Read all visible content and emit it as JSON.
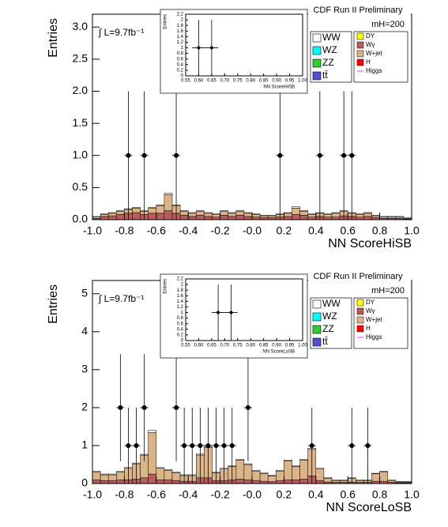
{
  "chart_data": [
    {
      "type": "histogram",
      "xlabel": "NN ScoreHiSB",
      "ylabel": "Entries",
      "experiment": "CDF Run II Preliminary",
      "mass_label": "mH=200",
      "luminosity": "∫ L=9.7fb⁻¹",
      "xlim": [
        -1,
        1
      ],
      "ylim": [
        0,
        3.2
      ],
      "xticks": [
        {
          "value": -1,
          "label": "-1.0"
        },
        {
          "value": -0.8,
          "label": "-0.8"
        },
        {
          "value": -0.6,
          "label": "-0.6"
        },
        {
          "value": -0.4,
          "label": "-0.4"
        },
        {
          "value": -0.2,
          "label": "-0.2"
        },
        {
          "value": 0,
          "label": "-0.0"
        },
        {
          "value": 0.2,
          "label": "0.2"
        },
        {
          "value": 0.4,
          "label": "0.4"
        },
        {
          "value": 0.6,
          "label": "0.6"
        },
        {
          "value": 0.8,
          "label": "0.8"
        },
        {
          "value": 1,
          "label": "1.0"
        }
      ],
      "yticks": [
        {
          "value": 0,
          "label": "0.0"
        },
        {
          "value": 0.5,
          "label": "0.5"
        },
        {
          "value": 1,
          "label": "1.0"
        },
        {
          "value": 1.5,
          "label": "1.5"
        },
        {
          "value": 2,
          "label": "2.0"
        },
        {
          "value": 2.5,
          "label": "2.5"
        },
        {
          "value": 3,
          "label": "3.0"
        }
      ],
      "legend": [
        {
          "name": "WW",
          "color": "#ffffff"
        },
        {
          "name": "WZ",
          "color": "#00ffff"
        },
        {
          "name": "ZZ",
          "color": "#33cc33"
        },
        {
          "name": "tt̄",
          "color": "#5050d0"
        },
        {
          "name": "DY",
          "color": "#ffff00"
        },
        {
          "name": "Wγ",
          "color": "#b85c5c"
        },
        {
          "name": "W+jet",
          "color": "#dcb48a"
        },
        {
          "name": "H",
          "color": "#ff0000"
        },
        {
          "name": "Higgs",
          "color": "#ff33ff"
        }
      ],
      "bins": [
        -1,
        -0.95,
        -0.9,
        -0.85,
        -0.8,
        -0.75,
        -0.7,
        -0.65,
        -0.6,
        -0.55,
        -0.5,
        -0.45,
        -0.4,
        -0.35,
        -0.3,
        -0.25,
        -0.2,
        -0.15,
        -0.1,
        -0.05,
        0,
        0.05,
        0.1,
        0.15,
        0.2,
        0.25,
        0.3,
        0.35,
        0.4,
        0.45,
        0.5,
        0.55,
        0.6,
        0.65,
        0.7,
        0.75,
        0.8,
        0.85,
        0.9,
        0.95,
        1
      ],
      "series": [
        {
          "color": "#b85c5c",
          "values": [
            0.02,
            0.05,
            0.06,
            0.08,
            0.1,
            0.11,
            0.08,
            0.1,
            0.1,
            0.14,
            0.1,
            0.07,
            0.05,
            0.07,
            0.05,
            0.04,
            0.07,
            0.05,
            0.07,
            0.05,
            0.04,
            0.03,
            0.03,
            0.04,
            0.05,
            0.08,
            0.07,
            0.04,
            0.05,
            0.04,
            0.04,
            0.06,
            0.05,
            0.04,
            0.05,
            0.03,
            0.02,
            0.02,
            0.02,
            0.01
          ]
        },
        {
          "color": "#dcb48a",
          "values": [
            0.02,
            0.03,
            0.04,
            0.05,
            0.06,
            0.07,
            0.05,
            0.08,
            0.12,
            0.25,
            0.12,
            0.06,
            0.05,
            0.06,
            0.05,
            0.04,
            0.06,
            0.05,
            0.06,
            0.05,
            0.04,
            0.03,
            0.03,
            0.04,
            0.05,
            0.1,
            0.06,
            0.04,
            0.05,
            0.04,
            0.06,
            0.07,
            0.05,
            0.04,
            0.05,
            0.03,
            0.02,
            0.02,
            0.02,
            0.01
          ]
        },
        {
          "color": "#ffffff",
          "values": [
            0.01,
            0.01,
            0.01,
            0.01,
            0.01,
            0.01,
            0.01,
            0.01,
            0.01,
            0.02,
            0.01,
            0.01,
            0.01,
            0.01,
            0.01,
            0.01,
            0.01,
            0.01,
            0.01,
            0.01,
            0.01,
            0.01,
            0.01,
            0.01,
            0.01,
            0.02,
            0.01,
            0.01,
            0.01,
            0.01,
            0.01,
            0.01,
            0.01,
            0.01,
            0.01,
            0.01,
            0.01,
            0.01,
            0.01,
            0.01
          ]
        }
      ],
      "data_points": {
        "x": [
          -0.775,
          -0.675,
          -0.475,
          0.175,
          0.425,
          0.575,
          0.625
        ],
        "values": [
          1,
          1,
          1,
          1,
          1,
          1,
          1
        ],
        "errors": [
          1,
          1,
          1,
          1,
          1,
          1,
          1
        ]
      }
    },
    {
      "type": "inset",
      "xlabel": "NN ScoreHiSB",
      "ylabel": "Entries",
      "xlim": [
        0.55,
        1
      ],
      "ylim": [
        0,
        2.2
      ],
      "xticks": [
        {
          "value": 0.55,
          "label": "0.55"
        },
        {
          "value": 0.6,
          "label": "0.60"
        },
        {
          "value": 0.65,
          "label": "0.65"
        },
        {
          "value": 0.7,
          "label": "0.70"
        },
        {
          "value": 0.75,
          "label": "0.75"
        },
        {
          "value": 0.8,
          "label": "0.80"
        },
        {
          "value": 0.85,
          "label": "0.85"
        },
        {
          "value": 0.9,
          "label": "0.90"
        },
        {
          "value": 0.95,
          "label": "0.95"
        },
        {
          "value": 1,
          "label": "1.00"
        }
      ],
      "yticks": [
        0,
        0.2,
        0.4,
        0.6,
        0.8,
        1,
        1.2,
        1.4,
        1.6,
        1.8,
        2,
        2.2
      ],
      "data_points": {
        "x": [
          0.6,
          0.65
        ],
        "values": [
          1,
          1
        ],
        "errors": [
          1,
          1
        ]
      }
    },
    {
      "type": "histogram",
      "xlabel": "NN ScoreLoSB",
      "ylabel": "Entries",
      "experiment": "CDF Run II Preliminary",
      "mass_label": "mH=200",
      "luminosity": "∫ L=9.7fb⁻¹",
      "xlim": [
        -1,
        1
      ],
      "ylim": [
        0,
        5.35
      ],
      "xticks": [
        {
          "value": -1,
          "label": "-1.0"
        },
        {
          "value": -0.8,
          "label": "-0.8"
        },
        {
          "value": -0.6,
          "label": "-0.6"
        },
        {
          "value": -0.4,
          "label": "-0.4"
        },
        {
          "value": -0.2,
          "label": "-0.2"
        },
        {
          "value": 0,
          "label": "-0.0"
        },
        {
          "value": 0.2,
          "label": "0.2"
        },
        {
          "value": 0.4,
          "label": "0.4"
        },
        {
          "value": 0.6,
          "label": "0.6"
        },
        {
          "value": 0.8,
          "label": "0.8"
        },
        {
          "value": 1,
          "label": "1.0"
        }
      ],
      "yticks": [
        0,
        1,
        2,
        3,
        4,
        5
      ],
      "legend": [
        {
          "name": "WW",
          "color": "#ffffff"
        },
        {
          "name": "WZ",
          "color": "#00ffff"
        },
        {
          "name": "ZZ",
          "color": "#33cc33"
        },
        {
          "name": "tt̄",
          "color": "#5050d0"
        },
        {
          "name": "DY",
          "color": "#ffff00"
        },
        {
          "name": "Wγ",
          "color": "#b85c5c"
        },
        {
          "name": "W+jet",
          "color": "#dcb48a"
        },
        {
          "name": "H",
          "color": "#ff0000"
        },
        {
          "name": "Higgs",
          "color": "#ff33ff"
        }
      ],
      "bins": [
        -1,
        -0.95,
        -0.9,
        -0.85,
        -0.8,
        -0.75,
        -0.7,
        -0.65,
        -0.6,
        -0.55,
        -0.5,
        -0.45,
        -0.4,
        -0.35,
        -0.3,
        -0.25,
        -0.2,
        -0.15,
        -0.1,
        -0.05,
        0,
        0.05,
        0.1,
        0.15,
        0.2,
        0.25,
        0.3,
        0.35,
        0.4,
        0.45,
        0.5,
        0.55,
        0.6,
        0.65,
        0.7,
        0.75,
        0.8,
        0.85,
        0.9,
        0.95,
        1
      ],
      "series": [
        {
          "color": "#b85c5c",
          "values": [
            0.1,
            0.08,
            0.08,
            0.1,
            0.1,
            0.12,
            0.15,
            0.25,
            0.1,
            0.1,
            0.08,
            0.06,
            0.06,
            0.15,
            0.15,
            0.08,
            0.08,
            0.1,
            0.12,
            0.1,
            0.08,
            0.06,
            0.05,
            0.08,
            0.1,
            0.1,
            0.12,
            0.2,
            0.08,
            0.04,
            0.03,
            0.03,
            0.04,
            0.03,
            0.03,
            0.06,
            0.06,
            0.03,
            0.02,
            0.02
          ]
        },
        {
          "color": "#dcb48a",
          "values": [
            0.2,
            0.15,
            0.15,
            0.2,
            0.3,
            0.4,
            0.6,
            1.1,
            0.3,
            0.25,
            0.2,
            0.15,
            0.15,
            0.6,
            0.8,
            0.2,
            0.3,
            0.35,
            0.5,
            0.4,
            0.25,
            0.2,
            0.15,
            0.25,
            0.5,
            0.35,
            0.5,
            0.7,
            0.3,
            0.1,
            0.05,
            0.05,
            0.1,
            0.05,
            0.05,
            0.2,
            0.25,
            0.05,
            0.02,
            0.02
          ]
        },
        {
          "color": "#ffffff",
          "values": [
            0.02,
            0.02,
            0.02,
            0.02,
            0.02,
            0.02,
            0.02,
            0.05,
            0.02,
            0.02,
            0.02,
            0.02,
            0.02,
            0.03,
            0.03,
            0.02,
            0.02,
            0.02,
            0.02,
            0.02,
            0.02,
            0.02,
            0.02,
            0.02,
            0.02,
            0.02,
            0.02,
            0.03,
            0.02,
            0.02,
            0.01,
            0.01,
            0.01,
            0.01,
            0.01,
            0.01,
            0.01,
            0.01,
            0.01,
            0.01
          ]
        }
      ],
      "data_points": {
        "x": [
          -0.825,
          -0.775,
          -0.725,
          -0.675,
          -0.475,
          -0.425,
          -0.375,
          -0.325,
          -0.275,
          -0.225,
          -0.175,
          -0.125,
          -0.025,
          0.375,
          0.625,
          0.725
        ],
        "values": [
          2,
          1,
          1,
          2,
          2,
          1,
          1,
          1,
          1,
          1,
          1,
          1,
          2,
          1,
          1,
          1
        ],
        "errors": [
          1.41,
          1,
          1,
          1.41,
          1.41,
          1,
          1,
          1,
          1,
          1,
          1,
          1,
          1.41,
          1,
          1,
          1
        ]
      }
    },
    {
      "type": "inset",
      "xlabel": "NN ScoreLoSB",
      "ylabel": "Entries",
      "xlim": [
        0.55,
        1
      ],
      "ylim": [
        0,
        2.2
      ],
      "xticks": [
        {
          "value": 0.55,
          "label": "0.55"
        },
        {
          "value": 0.6,
          "label": "0.60"
        },
        {
          "value": 0.65,
          "label": "0.65"
        },
        {
          "value": 0.7,
          "label": "0.70"
        },
        {
          "value": 0.75,
          "label": "0.75"
        },
        {
          "value": 0.8,
          "label": "0.80"
        },
        {
          "value": 0.85,
          "label": "0.85"
        },
        {
          "value": 0.9,
          "label": "0.90"
        },
        {
          "value": 0.95,
          "label": "0.95"
        },
        {
          "value": 1,
          "label": "1.00"
        }
      ],
      "yticks": [
        0,
        0.2,
        0.4,
        0.6,
        0.8,
        1,
        1.2,
        1.4,
        1.6,
        1.8,
        2,
        2.2
      ],
      "data_points": {
        "x": [
          0.675,
          0.725
        ],
        "values": [
          1,
          1
        ],
        "errors": [
          1,
          1
        ]
      }
    }
  ]
}
